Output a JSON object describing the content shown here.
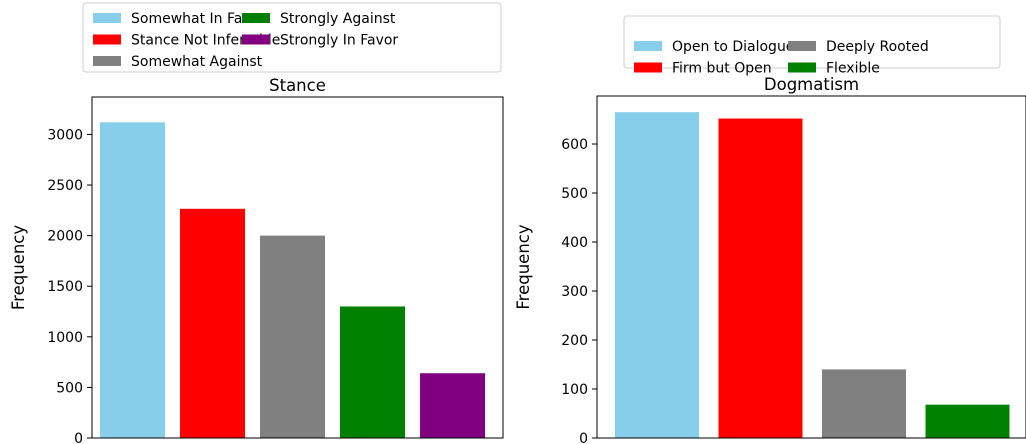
{
  "chart_data": [
    {
      "type": "bar",
      "title": "Stance",
      "xlabel": "",
      "ylabel": "Frequency",
      "categories": [
        "Somewhat In Favor",
        "Stance Not Inferrable",
        "Somewhat Against",
        "Strongly Against",
        "Strongly In Favor"
      ],
      "values": [
        3120,
        2265,
        2000,
        1300,
        640
      ],
      "colors": [
        "#87CEEB",
        "#FF0000",
        "#808080",
        "#008000",
        "#800080"
      ],
      "ylim": [
        0,
        3370
      ],
      "yticks": [
        0,
        500,
        1000,
        1500,
        2000,
        2500,
        3000
      ],
      "legend": {
        "placement": "above",
        "columns": 2,
        "items": [
          "Somewhat In Favor",
          "Stance Not Inferrable",
          "Somewhat Against",
          "Strongly Against",
          "Strongly In Favor"
        ]
      },
      "grid": false
    },
    {
      "type": "bar",
      "title": "Dogmatism",
      "xlabel": "",
      "ylabel": "Frequency",
      "categories": [
        "Open to Dialogue",
        "Firm but Open",
        "Deeply Rooted",
        "Flexible"
      ],
      "values": [
        665,
        652,
        140,
        68
      ],
      "colors": [
        "#87CEEB",
        "#FF0000",
        "#808080",
        "#008000"
      ],
      "ylim": [
        0,
        698
      ],
      "yticks": [
        0,
        100,
        200,
        300,
        400,
        500,
        600
      ],
      "legend": {
        "placement": "above",
        "columns": 2,
        "items": [
          "Open to Dialogue",
          "Firm but Open",
          "Deeply Rooted",
          "Flexible"
        ]
      },
      "grid": false
    }
  ]
}
